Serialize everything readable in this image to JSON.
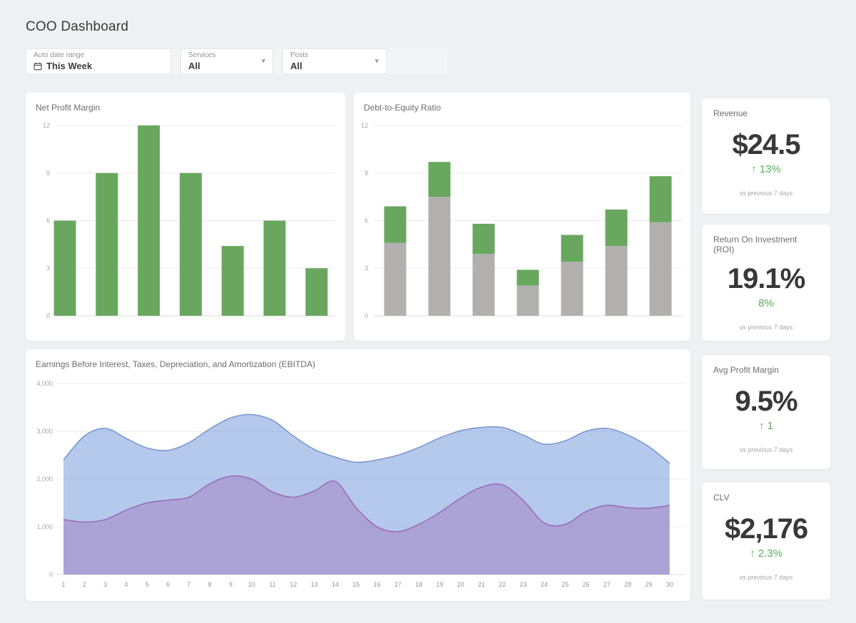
{
  "header": {
    "title": "COO Dashboard"
  },
  "filters": [
    {
      "label": "Auto date range",
      "value": "This Week",
      "icon": "calendar-icon"
    },
    {
      "label": "Services",
      "value": "All",
      "icon": "chevron-down-icon"
    },
    {
      "label": "Posts",
      "value": "All",
      "icon": "chevron-down-icon"
    }
  ],
  "colors": {
    "bar_green": "#69a75f",
    "bar_gray": "#b1b0af",
    "area_blue_line": "#7b97d1",
    "area_blue_fill": "rgba(120,157,220,0.55)",
    "area_purple_line": "#9c6fb5",
    "area_purple_fill": "rgba(159,116,189,0.45)",
    "accent_green": "#5aad5a",
    "page_bg": "#eef0f3",
    "card_bg": "#ffffff"
  },
  "chart_data": [
    {
      "id": "net-profit-margin",
      "type": "bar",
      "title": "Net Profit Margin",
      "values": [
        6,
        9,
        12,
        9,
        4.4,
        6,
        3
      ],
      "bar_color": "#69a75f",
      "ylim": [
        0,
        12
      ],
      "yticks": [
        0,
        3,
        6,
        9,
        12
      ],
      "ytick_labels": [
        "0",
        "3",
        "6",
        "9",
        "12"
      ],
      "grid": true,
      "x_labels_visible": false,
      "legend": "none"
    },
    {
      "id": "debt-to-equity",
      "type": "bar",
      "stacked": true,
      "title": "Debt-to-Equity Ratio",
      "series": [
        {
          "name": "base",
          "color": "#b1b0af",
          "values": [
            4.6,
            7.5,
            3.9,
            1.9,
            3.4,
            4.4,
            5.9
          ]
        },
        {
          "name": "top",
          "color": "#69a75f",
          "values": [
            2.3,
            2.2,
            1.9,
            1.0,
            1.7,
            2.3,
            2.9
          ]
        }
      ],
      "totals": [
        6.9,
        9.7,
        5.8,
        2.9,
        5.1,
        6.7,
        8.8
      ],
      "ylim": [
        0,
        12
      ],
      "yticks": [
        0,
        3,
        6,
        9,
        12
      ],
      "ytick_labels": [
        "0",
        "3",
        "6",
        "9",
        "12"
      ],
      "grid": true,
      "x_labels_visible": false,
      "legend": "none"
    },
    {
      "id": "ebitda",
      "type": "area",
      "title": "Earnings Before Interest, Taxes, Depreciation, and Amortization (EBITDA)",
      "x": [
        1,
        2,
        3,
        4,
        5,
        6,
        7,
        8,
        9,
        10,
        11,
        12,
        13,
        14,
        15,
        16,
        17,
        18,
        19,
        20,
        21,
        22,
        23,
        24,
        25,
        26,
        27,
        28,
        29,
        30
      ],
      "series": [
        {
          "name": "upper",
          "line_color": "#7b97d1",
          "fill_color": "rgba(120,157,220,0.55)",
          "values": [
            2400,
            2900,
            3060,
            2850,
            2650,
            2600,
            2760,
            3050,
            3280,
            3350,
            3230,
            2900,
            2620,
            2460,
            2350,
            2400,
            2500,
            2660,
            2860,
            3010,
            3080,
            3080,
            2920,
            2730,
            2800,
            3000,
            3060,
            2920,
            2680,
            2330
          ]
        },
        {
          "name": "lower",
          "line_color": "#9c6fb5",
          "fill_color": "rgba(159,116,189,0.45)",
          "values": [
            1150,
            1100,
            1150,
            1350,
            1500,
            1560,
            1620,
            1900,
            2060,
            2000,
            1730,
            1620,
            1750,
            1950,
            1400,
            1000,
            900,
            1050,
            1300,
            1600,
            1830,
            1880,
            1550,
            1080,
            1050,
            1320,
            1450,
            1400,
            1390,
            1450
          ]
        }
      ],
      "ylim": [
        0,
        4000
      ],
      "yticks": [
        0,
        1000,
        2000,
        3000,
        4000
      ],
      "ytick_labels": [
        "0",
        "1,000",
        "2,000",
        "3,000",
        "4,000"
      ],
      "grid": true,
      "legend": "none"
    }
  ],
  "kpis": [
    {
      "title": "Revenue",
      "value": "$24.5",
      "change": "↑ 13%",
      "note": "vs previous 7 days"
    },
    {
      "title": "Return On Investment (ROI)",
      "value": "19.1%",
      "change": "8%",
      "note": "vs previous 7 days"
    },
    {
      "title": "Avg Profit Margin",
      "value": "9.5%",
      "change": "↑ 1",
      "note": "vs previous 7 days"
    },
    {
      "title": "CLV",
      "value": "$2,176",
      "change": "↑ 2.3%",
      "note": "vs previous 7 days"
    }
  ]
}
